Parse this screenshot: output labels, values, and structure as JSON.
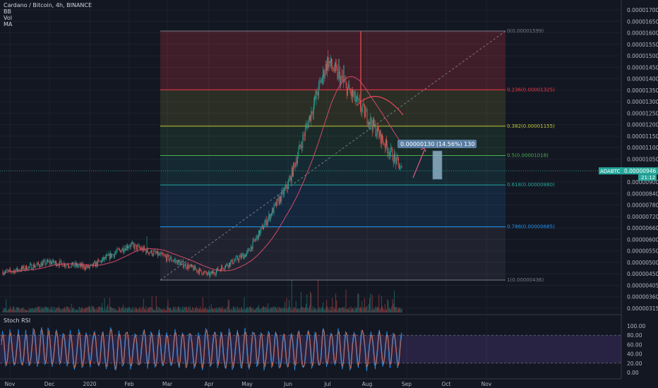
{
  "legend": {
    "title": "Cardano / Bitcoin, 4h, BINANCE",
    "indicators": [
      "BB",
      "Vol",
      "MA"
    ]
  },
  "stoch_label": "Stoch RSI",
  "chart_data": {
    "type": "candlestick",
    "symbol": "ADABTC",
    "last_price": "0.00000946",
    "last_price_sub": "21:12",
    "x_ticks": [
      "Nov",
      "Dec",
      "2020",
      "Feb",
      "Mar",
      "Apr",
      "May",
      "Jun",
      "Jul",
      "Aug",
      "Sep",
      "Oct",
      "Nov"
    ],
    "y_ticks": [
      "0.00001700",
      "0.00001650",
      "0.00001600",
      "0.00001550",
      "0.00001500",
      "0.00001450",
      "0.00001400",
      "0.00001350",
      "0.00001300",
      "0.00001250",
      "0.00001200",
      "0.00001150",
      "0.00001100",
      "0.00001050",
      "0.00001000",
      "0.00000900",
      "0.00000840",
      "0.00000780",
      "0.00000720",
      "0.00000660",
      "0.00000600",
      "0.00000550",
      "0.00000500",
      "0.00000450",
      "0.00000405",
      "0.00000360",
      "0.00000315"
    ],
    "price_path": [
      [
        "Nov",
        4.75e-06
      ],
      [
        "Dec",
        5.2e-06
      ],
      [
        "2020",
        4.95e-06
      ],
      [
        "Feb",
        6e-06
      ],
      [
        "Mar",
        5.4e-06
      ],
      [
        "Apr",
        4.6e-06
      ],
      [
        "May",
        5.6e-06
      ],
      [
        "Jun",
        8.8e-06
      ],
      [
        "Jul",
        1.46e-05
      ],
      [
        "Aug",
        1.2e-05
      ],
      [
        "late Aug",
        9.46e-06
      ]
    ],
    "fib_levels": [
      {
        "label": "0(0.00001599)",
        "ratio": 0,
        "color": "#787b86"
      },
      {
        "label": "0.236(0.00001325)",
        "ratio": 0.236,
        "color": "#f23645"
      },
      {
        "label": "0.382(0.00001155)",
        "ratio": 0.382,
        "color": "#c0ca33"
      },
      {
        "label": "0.5(0.00001018)",
        "ratio": 0.5,
        "color": "#4caf50"
      },
      {
        "label": "0.618(0.00000880)",
        "ratio": 0.618,
        "color": "#26a69a"
      },
      {
        "label": "0.786(0.00000685)",
        "ratio": 0.786,
        "color": "#2196f3"
      },
      {
        "label": "1(0.00000436)",
        "ratio": 1,
        "color": "#787b86"
      }
    ],
    "annotation": "0.00000130 (14.56%) 130",
    "stoch_ticks": [
      "100.00",
      "80.00",
      "60.00",
      "40.00",
      "20.00",
      "0.00"
    ],
    "stoch_band": [
      20,
      80
    ]
  }
}
